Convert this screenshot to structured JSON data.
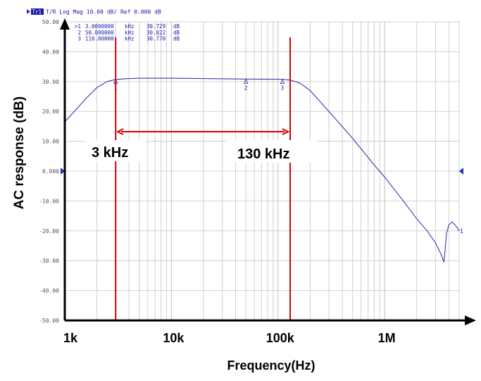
{
  "chart_data": {
    "type": "line",
    "header": {
      "trace_label": "Tr1",
      "settings_text": "T/R Log Mag 10.00 dB/ Ref 0.000 dB"
    },
    "markers": [
      {
        "label": ">1",
        "freq": "3.0000000",
        "unit": "kHz",
        "value": "30.729",
        "vunit": "dB",
        "x_hz": 3000,
        "y_db": 30.729,
        "tag": "1"
      },
      {
        "label": "2",
        "freq": "50.000000",
        "unit": "kHz",
        "value": "30.822",
        "vunit": "dB",
        "x_hz": 50000,
        "y_db": 30.822,
        "tag": "2"
      },
      {
        "label": "3",
        "freq": "110.00000",
        "unit": "kHz",
        "value": "30.770",
        "vunit": "dB",
        "x_hz": 110000,
        "y_db": 30.77,
        "tag": "3"
      }
    ],
    "y_tick_labels": [
      "50.00",
      "40.00",
      "30.00",
      "20.00",
      "10.00",
      "0.000",
      "-10.00",
      "-20.00",
      "-30.00",
      "-40.00",
      "-50.00"
    ],
    "y_ticks": [
      50,
      40,
      30,
      20,
      10,
      0,
      -10,
      -20,
      -30,
      -40,
      -50
    ],
    "ylim": [
      -50,
      50
    ],
    "x_scale": "log",
    "x_tick_labels": [
      "1k",
      "10k",
      "100k",
      "1M"
    ],
    "x_ticks": [
      1000,
      10000,
      100000,
      1000000
    ],
    "xlim": [
      1000,
      5000000
    ],
    "xlabel": "Frequency(Hz)",
    "ylabel": "AC response (dB)",
    "reference_level": 0,
    "end_tag": "1",
    "annotations": {
      "left_label": "3 kHz",
      "right_label": "130 kHz",
      "left_hz": 3000,
      "right_hz": 130000
    },
    "grid": true,
    "series": [
      {
        "color": "#3a3aa8",
        "x": [
          1000,
          1300,
          1600,
          2000,
          2500,
          3000,
          4000,
          5000,
          7000,
          10000,
          20000,
          50000,
          80000,
          110000,
          130000,
          160000,
          200000,
          300000,
          500000,
          800000,
          1000000,
          1500000,
          2000000,
          2500000,
          3000000,
          3400000,
          3600000,
          3700000,
          3800000,
          4000000,
          4300000,
          4700000,
          5000000
        ],
        "y": [
          16.5,
          21,
          24.5,
          28,
          30,
          30.7,
          31.0,
          31.1,
          31.1,
          31.1,
          31.0,
          30.82,
          30.8,
          30.77,
          30.5,
          29.5,
          27,
          20,
          11,
          2,
          -2,
          -10,
          -16,
          -20,
          -24,
          -28,
          -30.5,
          -26,
          -21,
          -18,
          -17,
          -18.5,
          -20
        ]
      }
    ],
    "axis_color": "#000000",
    "annotation_color": "#cc0000",
    "trace_color": "#3a3aa8",
    "grid_color": "#d0d0d0",
    "text_color": "#1a1aaa"
  }
}
